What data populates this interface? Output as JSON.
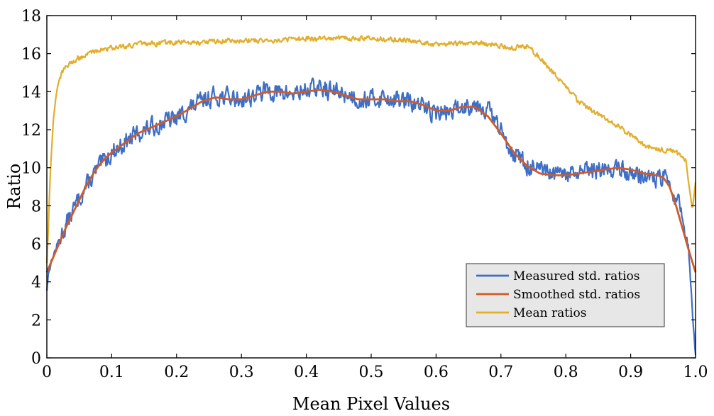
{
  "chart_data": {
    "type": "line",
    "title": "",
    "xlabel": "Mean Pixel Values",
    "ylabel": "Ratio",
    "xlim": [
      0,
      1.0
    ],
    "ylim": [
      0,
      18
    ],
    "xticks": [
      "0",
      "0.1",
      "0.2",
      "0.3",
      "0.4",
      "0.5",
      "0.6",
      "0.7",
      "0.8",
      "0.9",
      "1.0"
    ],
    "yticks": [
      "0",
      "2",
      "4",
      "6",
      "8",
      "10",
      "12",
      "14",
      "16",
      "18"
    ],
    "grid": false,
    "legend_position": "bottom-right",
    "series": [
      {
        "name": "Measured std. ratios",
        "color": "#3d6fc6",
        "noise": 0.45,
        "x": [
          0,
          0.003,
          0.01,
          0.02,
          0.03,
          0.04,
          0.05,
          0.06,
          0.07,
          0.08,
          0.09,
          0.1,
          0.12,
          0.14,
          0.16,
          0.18,
          0.2,
          0.22,
          0.24,
          0.26,
          0.28,
          0.3,
          0.32,
          0.34,
          0.36,
          0.38,
          0.4,
          0.42,
          0.44,
          0.46,
          0.48,
          0.5,
          0.52,
          0.54,
          0.56,
          0.58,
          0.6,
          0.62,
          0.64,
          0.66,
          0.68,
          0.7,
          0.72,
          0.74,
          0.76,
          0.78,
          0.8,
          0.82,
          0.84,
          0.86,
          0.88,
          0.9,
          0.92,
          0.94,
          0.95,
          0.96,
          0.97,
          0.98,
          0.99,
          0.995,
          1.0
        ],
        "y": [
          3.6,
          4.6,
          5.4,
          6.3,
          7.0,
          7.7,
          8.4,
          9.0,
          9.5,
          10.0,
          10.4,
          10.8,
          11.3,
          11.8,
          12.1,
          12.4,
          12.6,
          13.1,
          13.5,
          13.8,
          13.7,
          13.6,
          13.8,
          14.1,
          13.9,
          13.9,
          14.1,
          14.2,
          14.0,
          13.9,
          13.6,
          13.6,
          13.7,
          13.6,
          13.4,
          13.2,
          12.9,
          12.9,
          13.2,
          13.4,
          13.1,
          11.9,
          10.8,
          10.1,
          9.8,
          9.6,
          9.6,
          9.7,
          9.8,
          9.9,
          10.0,
          9.7,
          9.6,
          9.4,
          9.5,
          9.0,
          8.4,
          7.5,
          5.5,
          2.5,
          0.1
        ]
      },
      {
        "name": "Smoothed std. ratios",
        "color": "#d05a2a",
        "noise": 0,
        "x": [
          0,
          0.01,
          0.02,
          0.03,
          0.04,
          0.05,
          0.06,
          0.07,
          0.08,
          0.09,
          0.1,
          0.12,
          0.14,
          0.16,
          0.18,
          0.2,
          0.22,
          0.24,
          0.26,
          0.28,
          0.3,
          0.32,
          0.34,
          0.36,
          0.38,
          0.4,
          0.42,
          0.44,
          0.46,
          0.48,
          0.5,
          0.52,
          0.54,
          0.56,
          0.58,
          0.6,
          0.62,
          0.64,
          0.66,
          0.68,
          0.7,
          0.72,
          0.74,
          0.76,
          0.78,
          0.8,
          0.82,
          0.84,
          0.86,
          0.88,
          0.9,
          0.92,
          0.94,
          0.95,
          0.96,
          0.97,
          0.98,
          0.99,
          1.0
        ],
        "y": [
          4.5,
          5.3,
          6.1,
          6.9,
          7.6,
          8.3,
          9.0,
          9.6,
          10.1,
          10.5,
          10.8,
          11.3,
          11.8,
          12.1,
          12.4,
          12.7,
          13.1,
          13.5,
          13.7,
          13.6,
          13.6,
          13.8,
          14.0,
          14.0,
          13.9,
          14.0,
          14.1,
          14.0,
          13.8,
          13.6,
          13.6,
          13.6,
          13.5,
          13.5,
          13.3,
          13.0,
          13.0,
          13.2,
          13.2,
          12.7,
          11.8,
          10.8,
          10.1,
          9.7,
          9.6,
          9.6,
          9.7,
          9.8,
          9.9,
          10.0,
          9.9,
          9.7,
          9.6,
          9.5,
          9.0,
          8.0,
          6.8,
          5.6,
          4.5
        ]
      },
      {
        "name": "Mean ratios",
        "color": "#e2ae2c",
        "noise": 0.12,
        "x": [
          0,
          0.002,
          0.005,
          0.01,
          0.015,
          0.02,
          0.03,
          0.04,
          0.05,
          0.06,
          0.07,
          0.08,
          0.1,
          0.12,
          0.14,
          0.16,
          0.2,
          0.24,
          0.3,
          0.35,
          0.4,
          0.45,
          0.5,
          0.55,
          0.58,
          0.6,
          0.62,
          0.64,
          0.66,
          0.68,
          0.7,
          0.72,
          0.74,
          0.76,
          0.78,
          0.8,
          0.82,
          0.84,
          0.86,
          0.88,
          0.9,
          0.92,
          0.94,
          0.96,
          0.97,
          0.985,
          0.995,
          1.0
        ],
        "y": [
          5.0,
          6.5,
          9.5,
          12.5,
          14.0,
          14.8,
          15.3,
          15.6,
          15.8,
          15.9,
          16.1,
          16.2,
          16.3,
          16.4,
          16.5,
          16.5,
          16.6,
          16.6,
          16.7,
          16.7,
          16.8,
          16.8,
          16.8,
          16.7,
          16.6,
          16.5,
          16.5,
          16.6,
          16.6,
          16.5,
          16.4,
          16.3,
          16.4,
          15.8,
          15.0,
          14.2,
          13.5,
          13.0,
          12.6,
          12.2,
          11.7,
          11.2,
          11.0,
          10.9,
          10.8,
          10.4,
          7.8,
          9.2
        ]
      }
    ]
  }
}
